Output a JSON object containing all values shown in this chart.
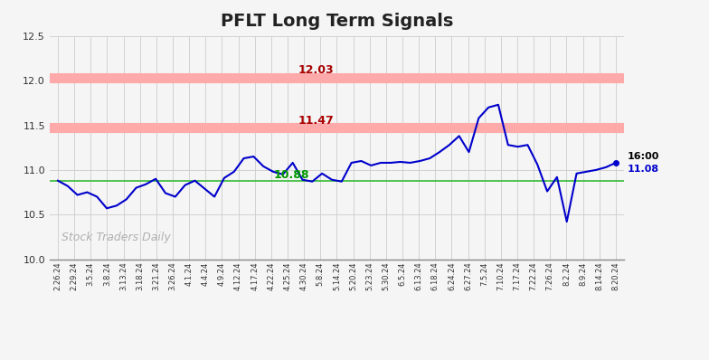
{
  "title": "PFLT Long Term Signals",
  "title_fontsize": 14,
  "title_fontweight": "bold",
  "watermark": "Stock Traders Daily",
  "hline_green": 10.88,
  "hline_red1": 11.47,
  "hline_red2": 12.03,
  "label_red1": "11.47",
  "label_red2": "12.03",
  "label_green": "10.88",
  "last_label": "16:00",
  "last_value_label": "11.08",
  "last_value": 11.08,
  "ylim": [
    10.0,
    12.5
  ],
  "line_color": "#0000cc",
  "hline_green_color": "#33bb33",
  "hline_red_color": "#ffaaaa",
  "hline_red_linewidth": 8,
  "red_label_color": "#aa0000",
  "green_label_color": "#009900",
  "background_color": "#f5f5f5",
  "plot_bg_color": "#f5f5f5",
  "x_labels": [
    "2.26.24",
    "2.29.24",
    "3.5.24",
    "3.8.24",
    "3.13.24",
    "3.18.24",
    "3.21.24",
    "3.26.24",
    "4.1.24",
    "4.4.24",
    "4.9.24",
    "4.12.24",
    "4.17.24",
    "4.22.24",
    "4.25.24",
    "4.30.24",
    "5.8.24",
    "5.14.24",
    "5.20.24",
    "5.23.24",
    "5.30.24",
    "6.5.24",
    "6.13.24",
    "6.18.24",
    "6.24.24",
    "6.27.24",
    "7.5.24",
    "7.10.24",
    "7.17.24",
    "7.22.24",
    "7.26.24",
    "8.2.24",
    "8.9.24",
    "8.14.24",
    "8.20.24"
  ],
  "y_values": [
    10.88,
    10.82,
    10.72,
    10.75,
    10.7,
    10.57,
    10.6,
    10.67,
    10.8,
    10.84,
    10.9,
    10.74,
    10.7,
    10.83,
    10.88,
    10.79,
    10.7,
    10.91,
    10.98,
    11.13,
    11.15,
    11.04,
    10.98,
    10.95,
    11.08,
    10.89,
    10.87,
    10.96,
    10.89,
    10.87,
    11.08,
    11.1,
    11.05,
    11.08,
    11.08,
    11.09,
    11.08,
    11.1,
    11.13,
    11.2,
    11.28,
    11.38,
    11.2,
    11.58,
    11.7,
    11.73,
    11.28,
    11.26,
    11.28,
    11.06,
    10.76,
    10.92,
    10.42,
    10.96,
    10.98,
    11.0,
    11.03,
    11.08
  ]
}
